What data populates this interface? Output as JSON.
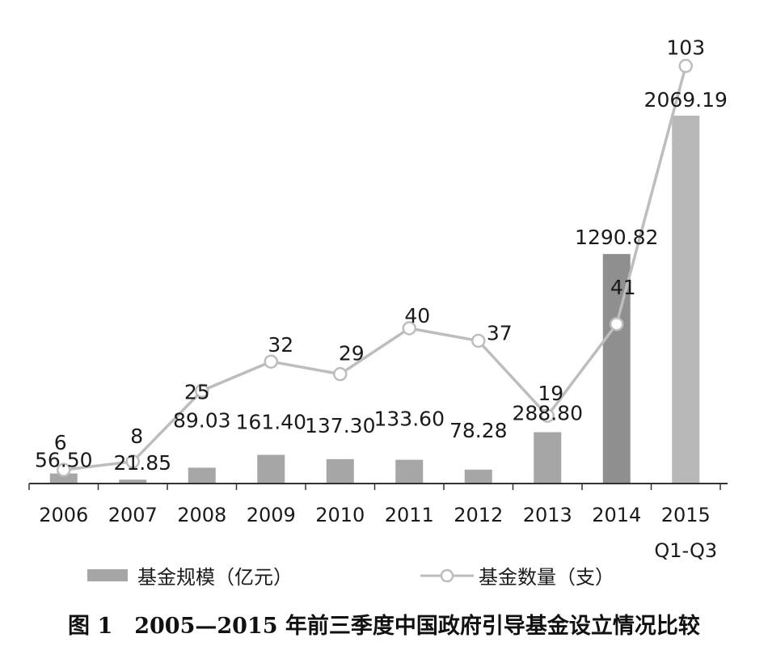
{
  "chart_data": {
    "type": "bar+line",
    "categories": [
      "2006",
      "2007",
      "2008",
      "2009",
      "2010",
      "2011",
      "2012",
      "2013",
      "2014",
      "2015"
    ],
    "category_sublabels": [
      "",
      "",
      "",
      "",
      "",
      "",
      "",
      "",
      "",
      "Q1-Q3"
    ],
    "series": [
      {
        "name": "基金规模（亿元）",
        "type": "bar",
        "values": [
          56.5,
          21.85,
          89.03,
          161.4,
          137.3,
          133.6,
          78.28,
          288.8,
          1290.82,
          2069.19
        ],
        "labels": [
          "56.50",
          "21.85",
          "89.03",
          "161.40",
          "137.30",
          "133.60",
          "78.28",
          "288.80",
          "1290.82",
          "2069.19"
        ]
      },
      {
        "name": "基金数量（支）",
        "type": "line",
        "values": [
          6,
          8,
          25,
          32,
          29,
          40,
          37,
          19,
          41,
          103
        ],
        "labels": [
          "6",
          "8",
          "25",
          "32",
          "29",
          "40",
          "37",
          "19",
          "41",
          "103"
        ]
      }
    ],
    "legend_position": "bottom",
    "grid": false,
    "colors": {
      "bar": "#a6a6a6",
      "bar_2014": "#8f8f8f",
      "bar_2015": "#b8b8b8",
      "line": "#bdbdbd",
      "marker_fill": "#ffffff",
      "axis": "#333333"
    }
  },
  "caption": "图 1　2005—2015 年前三季度中国政府引导基金设立情况比较"
}
